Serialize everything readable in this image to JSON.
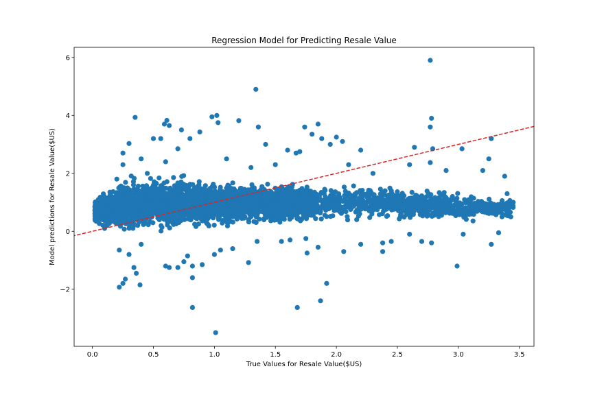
{
  "chart_data": {
    "type": "scatter",
    "title": "Regression Model for Predicting Resale Value",
    "xlabel": "True Values for Resale Value($US)",
    "ylabel": "Model predictions for Resale Value($US)",
    "xlim": [
      -0.15,
      3.62
    ],
    "ylim": [
      -3.97,
      6.35
    ],
    "xticks": [
      0.0,
      0.5,
      1.0,
      1.5,
      2.0,
      2.5,
      3.0,
      3.5
    ],
    "xtick_labels": [
      "0.0",
      "0.5",
      "1.0",
      "1.5",
      "2.0",
      "2.5",
      "3.0",
      "3.5"
    ],
    "yticks": [
      -2,
      0,
      2,
      4,
      6
    ],
    "ytick_labels": [
      "−2",
      "0",
      "2",
      "4",
      "6"
    ],
    "grid": false,
    "point_color": "#1f77b4",
    "reference_line": {
      "style": "dashed",
      "color": "#d62728",
      "description": "y = x"
    },
    "bulk_distribution": {
      "x_range": [
        0.02,
        3.45
      ],
      "y_center_by_x": [
        [
          0.0,
          0.7
        ],
        [
          0.5,
          1.0
        ],
        [
          1.0,
          0.95
        ],
        [
          1.5,
          0.95
        ],
        [
          2.0,
          1.0
        ],
        [
          2.5,
          0.95
        ],
        [
          3.0,
          0.85
        ],
        [
          3.45,
          0.8
        ]
      ],
      "y_half_spread_by_x": [
        [
          0.0,
          0.5
        ],
        [
          0.3,
          1.1
        ],
        [
          0.8,
          1.0
        ],
        [
          1.5,
          0.9
        ],
        [
          2.0,
          0.75
        ],
        [
          2.5,
          0.8
        ],
        [
          3.0,
          0.6
        ],
        [
          3.45,
          0.35
        ]
      ],
      "approx_count": 4200
    },
    "points": [
      [
        2.77,
        5.9
      ],
      [
        1.34,
        4.9
      ],
      [
        0.35,
        3.93
      ],
      [
        0.61,
        3.83
      ],
      [
        0.98,
        3.95
      ],
      [
        1.02,
        4.0
      ],
      [
        1.2,
        3.82
      ],
      [
        1.03,
        3.75
      ],
      [
        1.36,
        3.6
      ],
      [
        1.74,
        3.6
      ],
      [
        1.85,
        3.7
      ],
      [
        2.78,
        3.9
      ],
      [
        2.77,
        3.6
      ],
      [
        0.59,
        3.7
      ],
      [
        0.63,
        3.65
      ],
      [
        0.73,
        3.5
      ],
      [
        0.88,
        3.43
      ],
      [
        0.3,
        3.03
      ],
      [
        0.5,
        3.2
      ],
      [
        0.56,
        3.2
      ],
      [
        0.8,
        3.2
      ],
      [
        1.42,
        3.0
      ],
      [
        1.6,
        2.8
      ],
      [
        1.67,
        2.7
      ],
      [
        1.7,
        2.75
      ],
      [
        1.88,
        3.2
      ],
      [
        1.95,
        3.0
      ],
      [
        2.0,
        3.25
      ],
      [
        2.05,
        3.1
      ],
      [
        2.2,
        2.8
      ],
      [
        2.64,
        2.9
      ],
      [
        2.79,
        2.85
      ],
      [
        3.03,
        2.85
      ],
      [
        3.27,
        3.2
      ],
      [
        0.25,
        2.7
      ],
      [
        0.4,
        2.5
      ],
      [
        0.7,
        2.85
      ],
      [
        1.8,
        3.35
      ],
      [
        2.77,
        2.37
      ],
      [
        3.25,
        2.5
      ],
      [
        0.22,
        -1.93
      ],
      [
        0.25,
        -1.8
      ],
      [
        0.27,
        -1.65
      ],
      [
        0.39,
        -1.85
      ],
      [
        0.36,
        -1.45
      ],
      [
        0.34,
        -1.25
      ],
      [
        0.22,
        -0.65
      ],
      [
        0.3,
        -0.8
      ],
      [
        0.4,
        -0.45
      ],
      [
        0.6,
        -1.2
      ],
      [
        0.63,
        -1.25
      ],
      [
        0.7,
        -1.25
      ],
      [
        0.75,
        -1.05
      ],
      [
        0.82,
        -1.6
      ],
      [
        0.82,
        -1.2
      ],
      [
        0.9,
        -1.15
      ],
      [
        0.78,
        -0.85
      ],
      [
        0.82,
        -2.63
      ],
      [
        1.01,
        -3.5
      ],
      [
        1.0,
        -0.8
      ],
      [
        1.05,
        -0.65
      ],
      [
        1.15,
        -0.6
      ],
      [
        1.28,
        -1.08
      ],
      [
        1.35,
        -0.35
      ],
      [
        1.68,
        -2.63
      ],
      [
        1.76,
        -0.75
      ],
      [
        1.87,
        -2.4
      ],
      [
        1.92,
        -1.8
      ],
      [
        1.85,
        -0.55
      ],
      [
        2.06,
        -0.7
      ],
      [
        2.2,
        -0.45
      ],
      [
        2.38,
        -0.7
      ],
      [
        2.45,
        -0.35
      ],
      [
        2.38,
        -0.4
      ],
      [
        2.6,
        -0.1
      ],
      [
        2.7,
        -0.35
      ],
      [
        2.78,
        -0.4
      ],
      [
        2.99,
        -1.2
      ],
      [
        3.04,
        -0.1
      ],
      [
        3.27,
        -0.45
      ],
      [
        3.33,
        -0.05
      ],
      [
        1.55,
        -0.35
      ],
      [
        1.62,
        -0.3
      ],
      [
        1.75,
        -0.25
      ],
      [
        0.05,
        0.8
      ],
      [
        0.03,
        0.7
      ],
      [
        0.08,
        0.9
      ],
      [
        0.12,
        0.2
      ],
      [
        0.15,
        0.6
      ],
      [
        0.2,
        1.8
      ],
      [
        0.25,
        2.3
      ],
      [
        0.45,
        2.0
      ],
      [
        0.6,
        2.4
      ],
      [
        1.1,
        2.5
      ],
      [
        1.3,
        2.2
      ],
      [
        1.5,
        2.3
      ],
      [
        2.1,
        2.3
      ],
      [
        2.3,
        2.0
      ],
      [
        2.6,
        2.3
      ],
      [
        2.9,
        2.1
      ],
      [
        3.2,
        2.1
      ],
      [
        3.38,
        1.9
      ],
      [
        3.45,
        1.0
      ],
      [
        3.43,
        0.5
      ],
      [
        3.4,
        1.3
      ],
      [
        0.1,
        0.1
      ]
    ]
  }
}
